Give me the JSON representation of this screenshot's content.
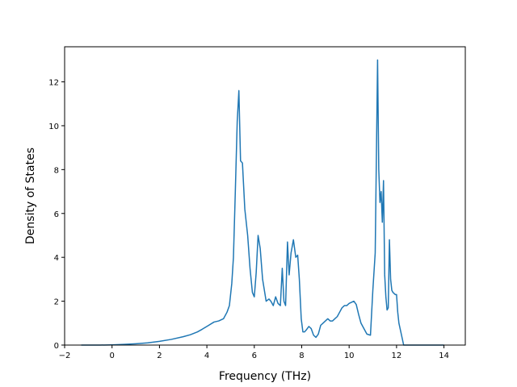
{
  "chart_data": {
    "type": "line",
    "title": "",
    "xlabel": "Frequency (THz)",
    "ylabel": "Density of States",
    "xlim": [
      -2.0,
      14.9
    ],
    "ylim": [
      0,
      13.6
    ],
    "xticks": [
      -2,
      0,
      2,
      4,
      6,
      8,
      10,
      12,
      14
    ],
    "yticks": [
      0,
      2,
      4,
      6,
      8,
      10,
      12
    ],
    "xtick_labels": [
      "−2",
      "0",
      "2",
      "4",
      "6",
      "8",
      "10",
      "12",
      "14"
    ],
    "ytick_labels": [
      "0",
      "2",
      "4",
      "6",
      "8",
      "10",
      "12"
    ],
    "grid": false,
    "legend": "none",
    "series": [
      {
        "color": "#1f77b4",
        "x": [
          -1.3,
          -1.0,
          -0.5,
          0.0,
          0.5,
          1.0,
          1.5,
          2.0,
          2.5,
          3.0,
          3.3,
          3.6,
          3.8,
          4.0,
          4.3,
          4.5,
          4.7,
          4.85,
          4.95,
          5.05,
          5.12,
          5.2,
          5.28,
          5.35,
          5.42,
          5.5,
          5.6,
          5.72,
          5.82,
          5.92,
          6.0,
          6.08,
          6.16,
          6.25,
          6.35,
          6.5,
          6.62,
          6.7,
          6.8,
          6.9,
          7.0,
          7.1,
          7.18,
          7.25,
          7.32,
          7.4,
          7.47,
          7.55,
          7.65,
          7.75,
          7.83,
          7.9,
          7.98,
          8.05,
          8.12,
          8.2,
          8.3,
          8.4,
          8.5,
          8.6,
          8.7,
          8.8,
          8.9,
          9.0,
          9.1,
          9.2,
          9.3,
          9.4,
          9.5,
          9.6,
          9.7,
          9.8,
          9.9,
          10.0,
          10.1,
          10.2,
          10.3,
          10.4,
          10.5,
          10.6,
          10.75,
          10.9,
          11.0,
          11.1,
          11.2,
          11.25,
          11.3,
          11.35,
          11.4,
          11.45,
          11.5,
          11.55,
          11.6,
          11.65,
          11.7,
          11.75,
          11.8,
          11.85,
          11.9,
          11.95,
          12.0,
          12.05,
          12.1,
          12.2,
          12.3,
          12.4,
          12.5,
          12.6,
          12.7,
          12.8,
          12.9,
          13.0,
          13.5,
          14.0
        ],
        "y": [
          0.0,
          0.0,
          0.0,
          0.01,
          0.03,
          0.06,
          0.1,
          0.17,
          0.26,
          0.38,
          0.47,
          0.6,
          0.72,
          0.85,
          1.05,
          1.1,
          1.2,
          1.5,
          1.8,
          2.8,
          4.0,
          7.0,
          10.2,
          11.6,
          8.4,
          8.3,
          6.2,
          5.0,
          3.5,
          2.4,
          2.2,
          3.3,
          5.0,
          4.4,
          3.0,
          2.0,
          2.1,
          2.0,
          1.8,
          2.2,
          1.9,
          1.8,
          3.5,
          2.0,
          1.8,
          4.7,
          3.2,
          4.2,
          4.8,
          4.0,
          4.1,
          3.0,
          1.2,
          0.6,
          0.6,
          0.7,
          0.85,
          0.75,
          0.45,
          0.35,
          0.5,
          0.9,
          1.0,
          1.1,
          1.2,
          1.1,
          1.1,
          1.2,
          1.3,
          1.5,
          1.7,
          1.8,
          1.8,
          1.9,
          1.95,
          2.0,
          1.85,
          1.4,
          1.0,
          0.8,
          0.5,
          0.45,
          2.5,
          4.2,
          13.0,
          8.0,
          6.5,
          7.0,
          5.6,
          7.5,
          3.2,
          2.2,
          1.6,
          1.7,
          4.8,
          3.0,
          2.5,
          2.4,
          2.35,
          2.3,
          2.3,
          1.5,
          1.0,
          0.5,
          0.0,
          0.0,
          0.0,
          0.0,
          0.0,
          0.0,
          0.0,
          0.0,
          0.0,
          0.0
        ]
      }
    ]
  }
}
